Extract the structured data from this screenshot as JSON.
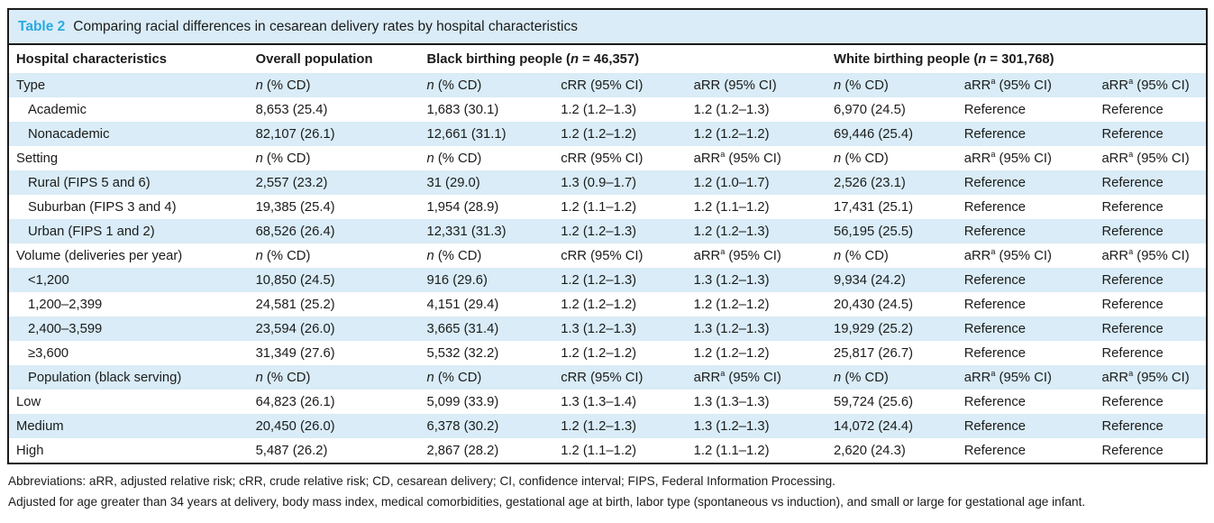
{
  "title": {
    "label": "Table 2",
    "caption": "Comparing racial differences in cesarean delivery rates by hospital characteristics"
  },
  "colors": {
    "accent": "#29aae1",
    "stripe": "#d9ecf7",
    "border": "#1b1b1b"
  },
  "header": {
    "cells": [
      {
        "text": "Hospital characteristics",
        "span": 1
      },
      {
        "text": "Overall population",
        "span": 1
      },
      {
        "text": "Black birthing people (*n* = 46,357)",
        "span": 3
      },
      {
        "text": "White birthing people (*n* = 301,768)",
        "span": 3
      }
    ]
  },
  "rows": [
    {
      "section": true,
      "indent": false,
      "cells": [
        "Type",
        "*n* (% CD)",
        "*n* (% CD)",
        "cRR (95% CI)",
        "aRR (95% CI)",
        "*n* (% CD)",
        "aRR^a (95% CI)",
        "aRR^a (95% CI)"
      ]
    },
    {
      "section": false,
      "indent": true,
      "cells": [
        "Academic",
        "8,653 (25.4)",
        "1,683 (30.1)",
        "1.2 (1.2–1.3)",
        "1.2 (1.2–1.3)",
        "6,970 (24.5)",
        "Reference",
        "Reference"
      ]
    },
    {
      "section": false,
      "indent": true,
      "cells": [
        "Nonacademic",
        "82,107 (26.1)",
        "12,661 (31.1)",
        "1.2 (1.2–1.2)",
        "1.2 (1.2–1.2)",
        "69,446 (25.4)",
        "Reference",
        "Reference"
      ]
    },
    {
      "section": true,
      "indent": false,
      "cells": [
        "Setting",
        "*n* (% CD)",
        "*n* (% CD)",
        "cRR (95% CI)",
        "aRR^a (95% CI)",
        "*n* (% CD)",
        "aRR^a (95% CI)",
        "aRR^a (95% CI)"
      ]
    },
    {
      "section": false,
      "indent": true,
      "cells": [
        "Rural (FIPS 5 and 6)",
        "2,557 (23.2)",
        "31 (29.0)",
        "1.3 (0.9–1.7)",
        "1.2 (1.0–1.7)",
        "2,526 (23.1)",
        "Reference",
        "Reference"
      ]
    },
    {
      "section": false,
      "indent": true,
      "cells": [
        "Suburban (FIPS 3 and 4)",
        "19,385 (25.4)",
        "1,954 (28.9)",
        "1.2 (1.1–1.2)",
        "1.2 (1.1–1.2)",
        "17,431 (25.1)",
        "Reference",
        "Reference"
      ]
    },
    {
      "section": false,
      "indent": true,
      "cells": [
        "Urban (FIPS 1 and 2)",
        "68,526 (26.4)",
        "12,331 (31.3)",
        "1.2 (1.2–1.3)",
        "1.2 (1.2–1.3)",
        "56,195 (25.5)",
        "Reference",
        "Reference"
      ]
    },
    {
      "section": true,
      "indent": false,
      "cells": [
        "Volume (deliveries per year)",
        "*n* (% CD)",
        "*n* (% CD)",
        "cRR (95% CI)",
        "aRR^a (95% CI)",
        "*n* (% CD)",
        "aRR^a (95% CI)",
        "aRR^a (95% CI)"
      ]
    },
    {
      "section": false,
      "indent": true,
      "cells": [
        "<1,200",
        "10,850 (24.5)",
        "916 (29.6)",
        "1.2 (1.2–1.3)",
        "1.3 (1.2–1.3)",
        "9,934 (24.2)",
        "Reference",
        "Reference"
      ]
    },
    {
      "section": false,
      "indent": true,
      "cells": [
        "1,200–2,399",
        "24,581 (25.2)",
        "4,151 (29.4)",
        "1.2 (1.2–1.2)",
        "1.2 (1.2–1.2)",
        "20,430 (24.5)",
        "Reference",
        "Reference"
      ]
    },
    {
      "section": false,
      "indent": true,
      "cells": [
        "2,400–3,599",
        "23,594 (26.0)",
        "3,665 (31.4)",
        "1.3 (1.2–1.3)",
        "1.3 (1.2–1.3)",
        "19,929 (25.2)",
        "Reference",
        "Reference"
      ]
    },
    {
      "section": false,
      "indent": true,
      "cells": [
        "≥3,600",
        "31,349 (27.6)",
        "5,532 (32.2)",
        "1.2 (1.2–1.2)",
        "1.2 (1.2–1.2)",
        "25,817 (26.7)",
        "Reference",
        "Reference"
      ]
    },
    {
      "section": true,
      "indent": true,
      "cells": [
        "Population (black serving)",
        "*n* (% CD)",
        "*n* (% CD)",
        "cRR (95% CI)",
        "aRR^a (95% CI)",
        "*n* (% CD)",
        "aRR^a (95% CI)",
        "aRR^a (95% CI)"
      ]
    },
    {
      "section": false,
      "indent": false,
      "cells": [
        "Low",
        "64,823 (26.1)",
        "5,099 (33.9)",
        "1.3 (1.3–1.4)",
        "1.3 (1.3–1.3)",
        "59,724 (25.6)",
        "Reference",
        "Reference"
      ]
    },
    {
      "section": false,
      "indent": false,
      "cells": [
        "Medium",
        "20,450 (26.0)",
        "6,378 (30.2)",
        "1.2 (1.2–1.3)",
        "1.3 (1.2–1.3)",
        "14,072 (24.4)",
        "Reference",
        "Reference"
      ]
    },
    {
      "section": false,
      "indent": false,
      "cells": [
        "High",
        "5,487 (26.2)",
        "2,867 (28.2)",
        "1.2 (1.1–1.2)",
        "1.2 (1.1–1.2)",
        "2,620 (24.3)",
        "Reference",
        "Reference"
      ]
    }
  ],
  "column_widths_pct": [
    20.3,
    14.3,
    11.2,
    11.1,
    11.7,
    10.9,
    11.5,
    9.0
  ],
  "footnotes": [
    "Abbreviations: aRR, adjusted relative risk; cRR, crude relative risk; CD, cesarean delivery; CI, confidence interval; FIPS, Federal Information Processing.",
    "Adjusted for age greater than 34 years at delivery, body mass index, medical comorbidities, gestational age at birth, labor type (spontaneous vs induction), and small or large for gestational age infant."
  ]
}
